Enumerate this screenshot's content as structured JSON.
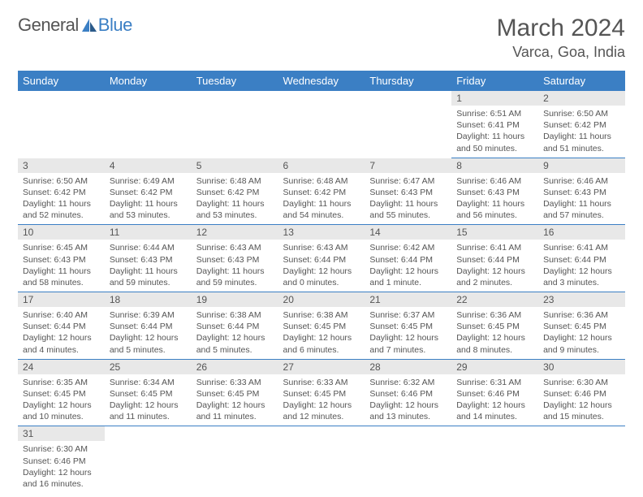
{
  "logo": {
    "general": "General",
    "blue": "Blue"
  },
  "title": "March 2024",
  "location": "Varca, Goa, India",
  "style": {
    "header_bg": "#3b7fc4",
    "header_fg": "#ffffff",
    "daynum_bg": "#e8e8e8",
    "text_color": "#555555",
    "border_color": "#3b7fc4",
    "title_fontsize": 30,
    "location_fontsize": 18,
    "header_fontsize": 13,
    "body_fontsize": 10.5
  },
  "weekdays": [
    "Sunday",
    "Monday",
    "Tuesday",
    "Wednesday",
    "Thursday",
    "Friday",
    "Saturday"
  ],
  "days": {
    "1": {
      "sunrise": "6:51 AM",
      "sunset": "6:41 PM",
      "daylight": "11 hours and 50 minutes."
    },
    "2": {
      "sunrise": "6:50 AM",
      "sunset": "6:42 PM",
      "daylight": "11 hours and 51 minutes."
    },
    "3": {
      "sunrise": "6:50 AM",
      "sunset": "6:42 PM",
      "daylight": "11 hours and 52 minutes."
    },
    "4": {
      "sunrise": "6:49 AM",
      "sunset": "6:42 PM",
      "daylight": "11 hours and 53 minutes."
    },
    "5": {
      "sunrise": "6:48 AM",
      "sunset": "6:42 PM",
      "daylight": "11 hours and 53 minutes."
    },
    "6": {
      "sunrise": "6:48 AM",
      "sunset": "6:42 PM",
      "daylight": "11 hours and 54 minutes."
    },
    "7": {
      "sunrise": "6:47 AM",
      "sunset": "6:43 PM",
      "daylight": "11 hours and 55 minutes."
    },
    "8": {
      "sunrise": "6:46 AM",
      "sunset": "6:43 PM",
      "daylight": "11 hours and 56 minutes."
    },
    "9": {
      "sunrise": "6:46 AM",
      "sunset": "6:43 PM",
      "daylight": "11 hours and 57 minutes."
    },
    "10": {
      "sunrise": "6:45 AM",
      "sunset": "6:43 PM",
      "daylight": "11 hours and 58 minutes."
    },
    "11": {
      "sunrise": "6:44 AM",
      "sunset": "6:43 PM",
      "daylight": "11 hours and 59 minutes."
    },
    "12": {
      "sunrise": "6:43 AM",
      "sunset": "6:43 PM",
      "daylight": "11 hours and 59 minutes."
    },
    "13": {
      "sunrise": "6:43 AM",
      "sunset": "6:44 PM",
      "daylight": "12 hours and 0 minutes."
    },
    "14": {
      "sunrise": "6:42 AM",
      "sunset": "6:44 PM",
      "daylight": "12 hours and 1 minute."
    },
    "15": {
      "sunrise": "6:41 AM",
      "sunset": "6:44 PM",
      "daylight": "12 hours and 2 minutes."
    },
    "16": {
      "sunrise": "6:41 AM",
      "sunset": "6:44 PM",
      "daylight": "12 hours and 3 minutes."
    },
    "17": {
      "sunrise": "6:40 AM",
      "sunset": "6:44 PM",
      "daylight": "12 hours and 4 minutes."
    },
    "18": {
      "sunrise": "6:39 AM",
      "sunset": "6:44 PM",
      "daylight": "12 hours and 5 minutes."
    },
    "19": {
      "sunrise": "6:38 AM",
      "sunset": "6:44 PM",
      "daylight": "12 hours and 5 minutes."
    },
    "20": {
      "sunrise": "6:38 AM",
      "sunset": "6:45 PM",
      "daylight": "12 hours and 6 minutes."
    },
    "21": {
      "sunrise": "6:37 AM",
      "sunset": "6:45 PM",
      "daylight": "12 hours and 7 minutes."
    },
    "22": {
      "sunrise": "6:36 AM",
      "sunset": "6:45 PM",
      "daylight": "12 hours and 8 minutes."
    },
    "23": {
      "sunrise": "6:36 AM",
      "sunset": "6:45 PM",
      "daylight": "12 hours and 9 minutes."
    },
    "24": {
      "sunrise": "6:35 AM",
      "sunset": "6:45 PM",
      "daylight": "12 hours and 10 minutes."
    },
    "25": {
      "sunrise": "6:34 AM",
      "sunset": "6:45 PM",
      "daylight": "12 hours and 11 minutes."
    },
    "26": {
      "sunrise": "6:33 AM",
      "sunset": "6:45 PM",
      "daylight": "12 hours and 11 minutes."
    },
    "27": {
      "sunrise": "6:33 AM",
      "sunset": "6:45 PM",
      "daylight": "12 hours and 12 minutes."
    },
    "28": {
      "sunrise": "6:32 AM",
      "sunset": "6:46 PM",
      "daylight": "12 hours and 13 minutes."
    },
    "29": {
      "sunrise": "6:31 AM",
      "sunset": "6:46 PM",
      "daylight": "12 hours and 14 minutes."
    },
    "30": {
      "sunrise": "6:30 AM",
      "sunset": "6:46 PM",
      "daylight": "12 hours and 15 minutes."
    },
    "31": {
      "sunrise": "6:30 AM",
      "sunset": "6:46 PM",
      "daylight": "12 hours and 16 minutes."
    }
  },
  "grid": [
    [
      null,
      null,
      null,
      null,
      null,
      "1",
      "2"
    ],
    [
      "3",
      "4",
      "5",
      "6",
      "7",
      "8",
      "9"
    ],
    [
      "10",
      "11",
      "12",
      "13",
      "14",
      "15",
      "16"
    ],
    [
      "17",
      "18",
      "19",
      "20",
      "21",
      "22",
      "23"
    ],
    [
      "24",
      "25",
      "26",
      "27",
      "28",
      "29",
      "30"
    ],
    [
      "31",
      null,
      null,
      null,
      null,
      null,
      null
    ]
  ],
  "labels": {
    "sunrise": "Sunrise: ",
    "sunset": "Sunset: ",
    "daylight": "Daylight: "
  }
}
